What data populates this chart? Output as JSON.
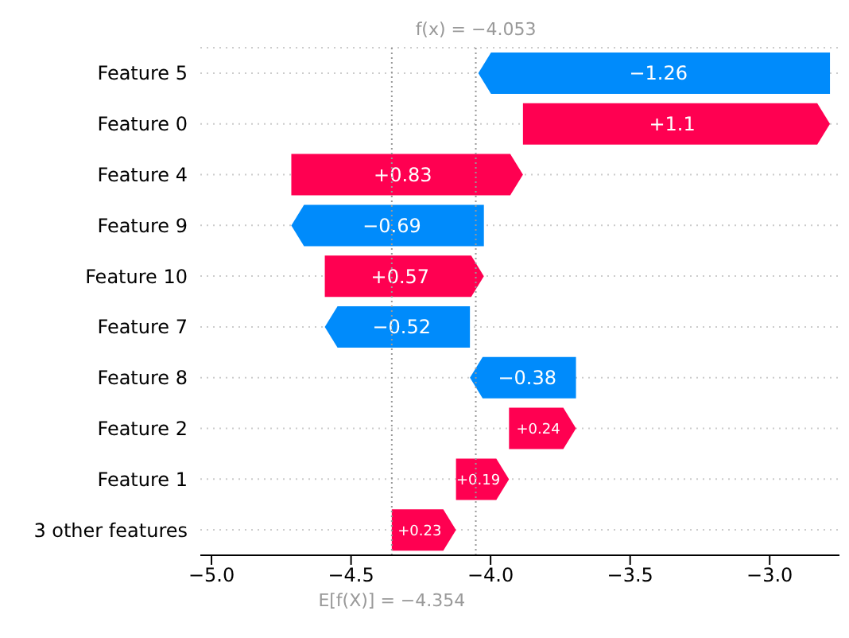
{
  "chart_data": {
    "type": "bar",
    "orientation": "horizontal",
    "categories": [
      "Feature 5",
      "Feature 0",
      "Feature 4",
      "Feature 9",
      "Feature 10",
      "Feature 7",
      "Feature 8",
      "Feature 2",
      "Feature 1",
      "3 other features"
    ],
    "base": [
      -2.784,
      -3.884,
      -4.714,
      -4.024,
      -4.594,
      -4.074,
      -3.694,
      -3.934,
      -4.124,
      -4.354
    ],
    "values": [
      -1.26,
      1.1,
      0.83,
      -0.69,
      0.57,
      -0.52,
      -0.38,
      0.24,
      0.19,
      0.23
    ],
    "value_labels": [
      "−1.26",
      "+1.1",
      "+0.83",
      "−0.69",
      "+0.57",
      "−0.52",
      "−0.38",
      "+0.24",
      "+0.19",
      "+0.23"
    ],
    "colors": [
      "#008bfb",
      "#ff0051",
      "#ff0051",
      "#008bfb",
      "#ff0051",
      "#008bfb",
      "#008bfb",
      "#ff0051",
      "#ff0051",
      "#ff0051"
    ],
    "xlim": [
      -5.04,
      -2.75
    ],
    "xticks": [
      {
        "value": -5,
        "label": "−5.0"
      },
      {
        "value": -4.5,
        "label": "−4.5"
      },
      {
        "value": -4,
        "label": "−4.0"
      },
      {
        "value": -3.5,
        "label": "−3.5"
      },
      {
        "value": -3,
        "label": "−3.0"
      }
    ],
    "ref_lines": [
      {
        "axis": "x",
        "value": -4.053,
        "label": "f(x) = −4.053",
        "color": "#999999",
        "line_style": "dotted"
      },
      {
        "axis": "x",
        "value": -4.354,
        "label": "E[f(X)] = −4.354",
        "color": "#999999",
        "line_style": "dotted"
      }
    ],
    "grid": "y"
  }
}
